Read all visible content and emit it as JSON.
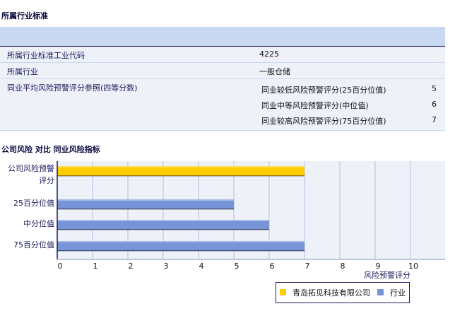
{
  "section1": {
    "title": "所属行业标准",
    "rows": [
      {
        "label": "所属行业标准工业代码",
        "value": "4225"
      },
      {
        "label": "所属行业",
        "value": "一般仓储"
      },
      {
        "label": "同业平均风险预警评分参照(四等分数)",
        "items": [
          {
            "label": "同业较低风险预警评分(25百分位值)",
            "value": "5"
          },
          {
            "label": "同业中等风险预警评分(中位值)",
            "value": "6"
          },
          {
            "label": "同业较高风险预警评分(75百分位值)",
            "value": "7"
          }
        ]
      }
    ]
  },
  "chart_data": {
    "type": "bar",
    "orientation": "horizontal",
    "title": "公司风险 对比 同业风险指标",
    "categories": [
      "公司风险预警评分",
      "25百分位值",
      "中分位值",
      "75百分位值"
    ],
    "category_lines": [
      [
        "公司风险预警",
        "评分"
      ],
      [
        "25百分位值"
      ],
      [
        "中分位值"
      ],
      [
        "75百分位值"
      ]
    ],
    "values": [
      7,
      5,
      6,
      7
    ],
    "series_of_bar": [
      0,
      1,
      1,
      1
    ],
    "series": [
      {
        "name": "青岛拓见科技有限公司",
        "color": "#ffcc00"
      },
      {
        "name": "行业",
        "color": "#7794d8"
      }
    ],
    "xlabel": "风险预警评分",
    "xlim": [
      0,
      11
    ],
    "xticks": [
      "0",
      "1",
      "2",
      "3",
      "4",
      "5",
      "6",
      "7",
      "8",
      "9",
      "10"
    ],
    "grid": true,
    "legend": "bottom-right"
  }
}
